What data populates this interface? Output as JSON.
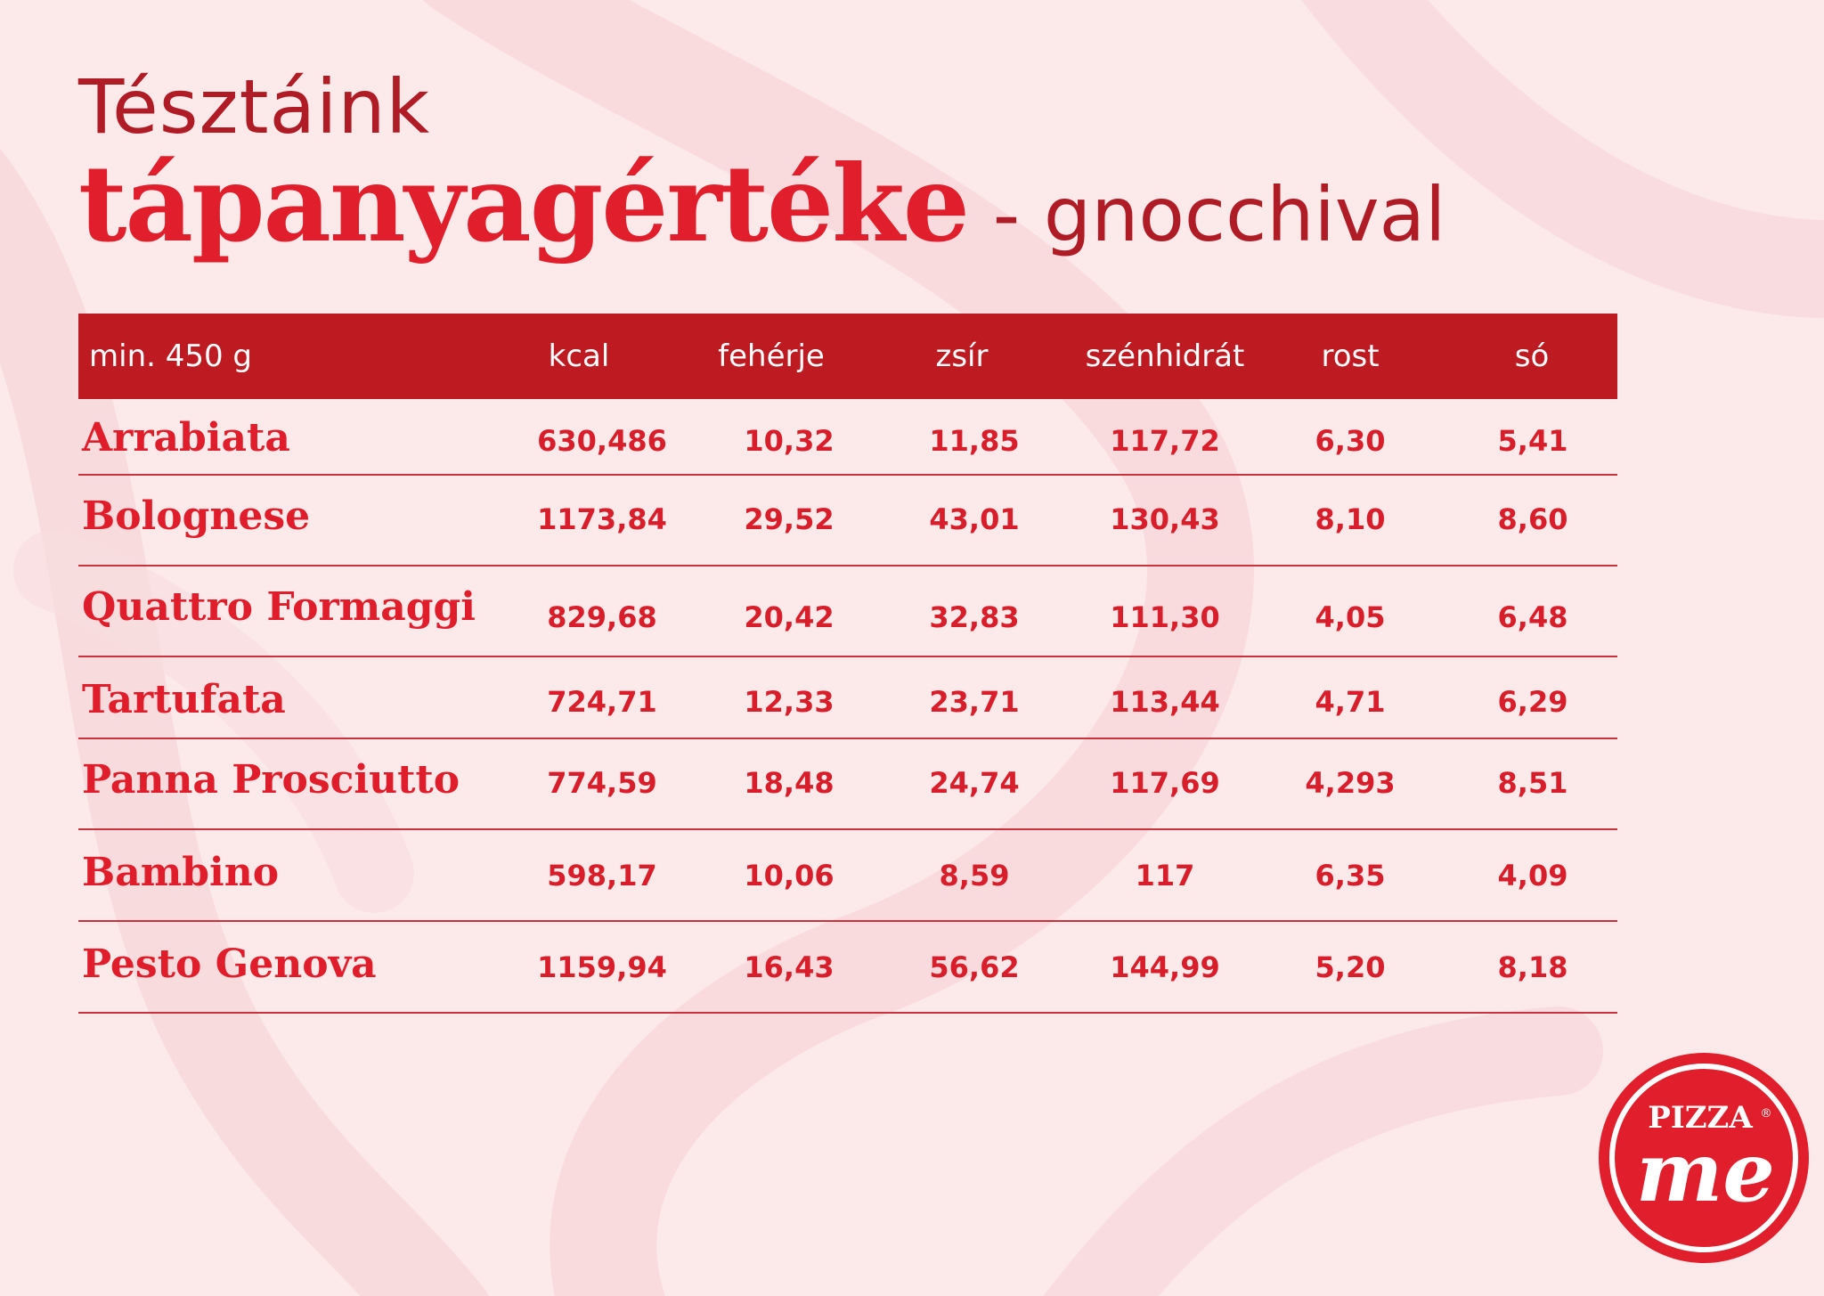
{
  "title": {
    "line1": "Tésztáink",
    "line2_bold": "tápanyagértéke",
    "line2_sub": "- gnocchival"
  },
  "table": {
    "columns": [
      "min. 450 g",
      "kcal",
      "fehérje",
      "zsír",
      "szénhidrát",
      "rost",
      "só"
    ],
    "rows": [
      {
        "name": "Arrabiata",
        "values": [
          "630,486",
          "10,32",
          "11,85",
          "117,72",
          "6,30",
          "5,41"
        ]
      },
      {
        "name": "Bolognese",
        "values": [
          "1173,84",
          "29,52",
          "43,01",
          "130,43",
          "8,10",
          "8,60"
        ]
      },
      {
        "name": "Quattro Formaggi",
        "values": [
          "829,68",
          "20,42",
          "32,83",
          "111,30",
          "4,05",
          "6,48"
        ]
      },
      {
        "name": "Tartufata",
        "values": [
          "724,71",
          "12,33",
          "23,71",
          "113,44",
          "4,71",
          "6,29"
        ]
      },
      {
        "name": "Panna Prosciutto",
        "values": [
          "774,59",
          "18,48",
          "24,74",
          "117,69",
          "4,293",
          "8,51"
        ]
      },
      {
        "name": "Bambino",
        "values": [
          "598,17",
          "10,06",
          "8,59",
          "117",
          "6,35",
          "4,09"
        ]
      },
      {
        "name": "Pesto Genova",
        "values": [
          "1159,94",
          "16,43",
          "56,62",
          "144,99",
          "5,20",
          "8,18"
        ]
      }
    ]
  },
  "logo": {
    "brand_text": "PIZZA",
    "script_text": "me",
    "mark": "®"
  },
  "colors": {
    "background": "#fce9ea",
    "header_bg": "#bd1a22",
    "accent_red": "#e11f2c",
    "dark_red": "#b01c26"
  }
}
